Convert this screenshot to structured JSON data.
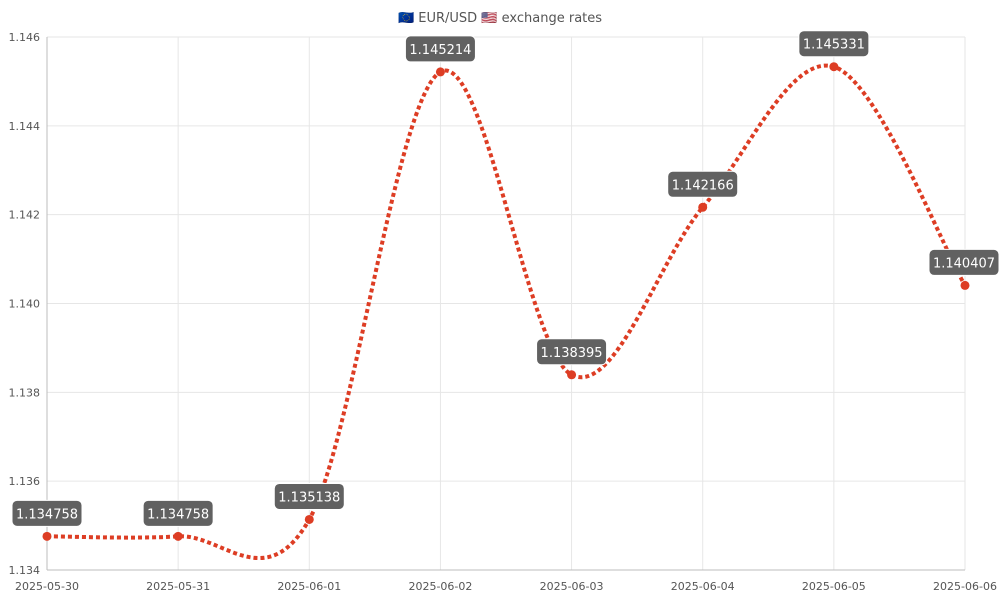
{
  "chart_data": {
    "type": "line",
    "title": "🇪🇺 EUR/USD 🇺🇸 exchange rates",
    "xlabel": "",
    "ylabel": "",
    "x": [
      "2025-05-30",
      "2025-05-31",
      "2025-06-01",
      "2025-06-02",
      "2025-06-03",
      "2025-06-04",
      "2025-06-05",
      "2025-06-06"
    ],
    "series": [
      {
        "values": [
          1.134758,
          1.134758,
          1.135138,
          1.145214,
          1.138395,
          1.142166,
          1.145331,
          1.140407
        ],
        "data_labels": [
          "1.134758",
          "1.134758",
          "1.135138",
          "1.145214",
          "1.138395",
          "1.142166",
          "1.145331",
          "1.140407"
        ],
        "color": "#dd3d24",
        "line_style": "dotted",
        "smooth": true
      }
    ],
    "ylim": [
      1.134,
      1.146
    ],
    "yticks": [
      1.134,
      1.136,
      1.138,
      1.14,
      1.142,
      1.144,
      1.146
    ],
    "ytick_labels": [
      "1.134",
      "1.136",
      "1.138",
      "1.140",
      "1.142",
      "1.144",
      "1.146"
    ],
    "grid": true,
    "legend": "none",
    "colors": {
      "grid": "#e6e6e6",
      "axis": "#bdbdbd",
      "label_box": "#616161",
      "label_text": "#ffffff",
      "text": "#555555"
    }
  }
}
